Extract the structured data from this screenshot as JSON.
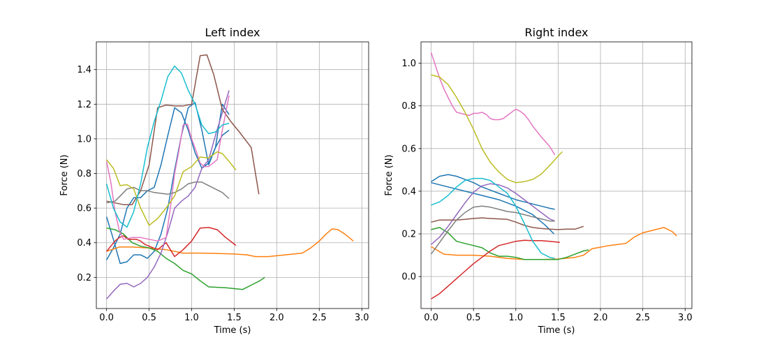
{
  "chart_data": [
    {
      "type": "line",
      "title": "Left index",
      "xlabel": "Time (s)",
      "ylabel": "Force (N)",
      "xlim": [
        -0.12,
        3.08
      ],
      "ylim": [
        0.02,
        1.56
      ],
      "xticks": [
        0.0,
        0.5,
        1.0,
        1.5,
        2.0,
        2.5,
        3.0
      ],
      "xtick_labels": [
        "0.0",
        "0.5",
        "1.0",
        "1.5",
        "2.0",
        "2.5",
        "3.0"
      ],
      "yticks": [
        0.2,
        0.4,
        0.6,
        0.8,
        1.0,
        1.2,
        1.4
      ],
      "ytick_labels": [
        "0.2",
        "0.4",
        "0.6",
        "0.8",
        "1.0",
        "1.2",
        "1.4"
      ],
      "grid": true,
      "series": [
        {
          "color": "#1f77b4",
          "x": [
            0.0,
            0.08,
            0.16,
            0.24,
            0.32,
            0.4,
            0.48,
            0.56,
            0.64,
            0.72,
            0.8,
            0.88,
            0.96,
            1.04,
            1.12,
            1.2,
            1.28,
            1.36,
            1.44
          ],
          "y": [
            0.55,
            0.42,
            0.28,
            0.29,
            0.33,
            0.33,
            0.31,
            0.35,
            0.45,
            0.6,
            0.82,
            1.02,
            1.18,
            1.21,
            1.05,
            0.85,
            0.95,
            1.2,
            1.14
          ]
        },
        {
          "color": "#1f77b4",
          "x": [
            0.0,
            0.08,
            0.16,
            0.24,
            0.32,
            0.4,
            0.48,
            0.56,
            0.64,
            0.72,
            0.8,
            0.88,
            0.96,
            1.04,
            1.12,
            1.2,
            1.28,
            1.36,
            1.44
          ],
          "y": [
            0.3,
            0.37,
            0.45,
            0.6,
            0.66,
            0.66,
            0.7,
            0.72,
            0.85,
            1.02,
            1.18,
            1.15,
            1.05,
            0.92,
            0.83,
            0.86,
            0.95,
            1.02,
            1.05
          ]
        },
        {
          "color": "#ff7f0e",
          "x": [
            0.0,
            0.15,
            0.3,
            0.5,
            0.7,
            0.9,
            1.1,
            1.3,
            1.5,
            1.65,
            1.75,
            1.9,
            2.1,
            2.3,
            2.4,
            2.5,
            2.58,
            2.65,
            2.72,
            2.8,
            2.9
          ],
          "y": [
            0.35,
            0.375,
            0.375,
            0.37,
            0.36,
            0.34,
            0.34,
            0.338,
            0.335,
            0.33,
            0.32,
            0.32,
            0.33,
            0.34,
            0.37,
            0.41,
            0.45,
            0.48,
            0.475,
            0.45,
            0.41
          ]
        },
        {
          "color": "#2ca02c",
          "x": [
            0.0,
            0.1,
            0.2,
            0.3,
            0.4,
            0.5,
            0.6,
            0.7,
            0.8,
            0.9,
            1.0,
            1.1,
            1.2,
            1.4,
            1.6,
            1.7,
            1.8,
            1.86
          ],
          "y": [
            0.485,
            0.475,
            0.45,
            0.4,
            0.38,
            0.37,
            0.35,
            0.31,
            0.28,
            0.24,
            0.22,
            0.18,
            0.145,
            0.14,
            0.13,
            0.155,
            0.18,
            0.2
          ]
        },
        {
          "color": "#d62728",
          "x": [
            0.0,
            0.05,
            0.1,
            0.15,
            0.2,
            0.25,
            0.3,
            0.35,
            0.4,
            0.45,
            0.5,
            0.6,
            0.7,
            0.8,
            0.9,
            1.0,
            1.1,
            1.2,
            1.3,
            1.4,
            1.52
          ],
          "y": [
            0.35,
            0.38,
            0.41,
            0.43,
            0.44,
            0.42,
            0.42,
            0.42,
            0.41,
            0.39,
            0.38,
            0.36,
            0.4,
            0.32,
            0.36,
            0.41,
            0.485,
            0.488,
            0.475,
            0.43,
            0.385
          ]
        },
        {
          "color": "#9467bd",
          "x": [
            0.0,
            0.08,
            0.16,
            0.24,
            0.32,
            0.4,
            0.48,
            0.56,
            0.64,
            0.72,
            0.8,
            0.88,
            0.96,
            1.04,
            1.12,
            1.2,
            1.28,
            1.36,
            1.44
          ],
          "y": [
            0.075,
            0.12,
            0.16,
            0.165,
            0.145,
            0.165,
            0.2,
            0.26,
            0.34,
            0.46,
            0.6,
            0.64,
            0.67,
            0.72,
            0.83,
            0.88,
            1.02,
            1.15,
            1.28
          ]
        },
        {
          "color": "#8c564b",
          "x": [
            0.0,
            0.1,
            0.2,
            0.3,
            0.4,
            0.5,
            0.6,
            0.7,
            0.8,
            0.9,
            1.0,
            1.1,
            1.18,
            1.26,
            1.36,
            1.46,
            1.56,
            1.7,
            1.79
          ],
          "y": [
            0.64,
            0.63,
            0.62,
            0.62,
            0.7,
            0.85,
            1.18,
            1.195,
            1.19,
            1.19,
            1.2,
            1.48,
            1.485,
            1.37,
            1.17,
            1.1,
            1.04,
            0.95,
            0.68
          ]
        },
        {
          "color": "#e377c2",
          "x": [
            0.0,
            0.05,
            0.1,
            0.15,
            0.2,
            0.3,
            0.4,
            0.5,
            0.6,
            0.7,
            0.75,
            0.8,
            0.85,
            0.9,
            0.95,
            1.0,
            1.06,
            1.1,
            1.15,
            1.2,
            1.3,
            1.36,
            1.44
          ],
          "y": [
            0.87,
            0.75,
            0.58,
            0.47,
            0.42,
            0.43,
            0.43,
            0.42,
            0.41,
            0.43,
            0.6,
            0.8,
            0.93,
            1.08,
            1.085,
            1.0,
            0.92,
            0.86,
            0.84,
            0.84,
            0.88,
            1.05,
            1.25
          ]
        },
        {
          "color": "#7f7f7f",
          "x": [
            0.0,
            0.1,
            0.16,
            0.24,
            0.32,
            0.4,
            0.48,
            0.56,
            0.64,
            0.72,
            0.8,
            0.88,
            0.96,
            1.04,
            1.12,
            1.2,
            1.28,
            1.36,
            1.44
          ],
          "y": [
            0.63,
            0.64,
            0.67,
            0.71,
            0.72,
            0.7,
            0.7,
            0.69,
            0.685,
            0.68,
            0.69,
            0.71,
            0.74,
            0.75,
            0.75,
            0.73,
            0.71,
            0.69,
            0.655
          ]
        },
        {
          "color": "#bcbd22",
          "x": [
            0.0,
            0.08,
            0.16,
            0.24,
            0.32,
            0.4,
            0.5,
            0.6,
            0.7,
            0.8,
            0.9,
            1.0,
            1.1,
            1.2,
            1.3,
            1.36,
            1.44,
            1.52
          ],
          "y": [
            0.88,
            0.83,
            0.73,
            0.735,
            0.71,
            0.6,
            0.5,
            0.54,
            0.6,
            0.67,
            0.81,
            0.84,
            0.895,
            0.89,
            0.925,
            0.915,
            0.87,
            0.82
          ]
        },
        {
          "color": "#17becf",
          "x": [
            0.0,
            0.08,
            0.16,
            0.24,
            0.32,
            0.4,
            0.48,
            0.56,
            0.64,
            0.72,
            0.8,
            0.88,
            0.96,
            1.04,
            1.12,
            1.2,
            1.28,
            1.36,
            1.44
          ],
          "y": [
            0.74,
            0.6,
            0.52,
            0.49,
            0.58,
            0.74,
            0.95,
            1.1,
            1.22,
            1.36,
            1.42,
            1.38,
            1.28,
            1.2,
            1.08,
            1.03,
            1.04,
            1.08,
            1.09
          ]
        }
      ]
    },
    {
      "type": "line",
      "title": "Right index",
      "xlabel": "Time (s)",
      "ylabel": "Force (N)",
      "xlim": [
        -0.12,
        3.08
      ],
      "ylim": [
        -0.15,
        1.1
      ],
      "xticks": [
        0.0,
        0.5,
        1.0,
        1.5,
        2.0,
        2.5,
        3.0
      ],
      "xtick_labels": [
        "0.0",
        "0.5",
        "1.0",
        "1.5",
        "2.0",
        "2.5",
        "3.0"
      ],
      "yticks": [
        0.0,
        0.2,
        0.4,
        0.6,
        0.8,
        1.0
      ],
      "ytick_labels": [
        "0.0",
        "0.2",
        "0.4",
        "0.6",
        "0.8",
        "1.0"
      ],
      "grid": true,
      "series": [
        {
          "color": "#1f77b4",
          "x": [
            0.0,
            0.2,
            0.4,
            0.6,
            0.8,
            1.0,
            1.2,
            1.35,
            1.45
          ],
          "y": [
            0.44,
            0.42,
            0.4,
            0.38,
            0.36,
            0.33,
            0.29,
            0.24,
            0.2
          ]
        },
        {
          "color": "#1f77b4",
          "x": [
            0.0,
            0.1,
            0.2,
            0.3,
            0.4,
            0.5,
            0.6,
            0.7,
            0.8,
            0.9,
            1.0,
            1.1,
            1.2,
            1.3,
            1.4,
            1.46
          ],
          "y": [
            0.445,
            0.47,
            0.478,
            0.47,
            0.455,
            0.44,
            0.42,
            0.405,
            0.39,
            0.375,
            0.36,
            0.35,
            0.34,
            0.33,
            0.32,
            0.315
          ]
        },
        {
          "color": "#ff7f0e",
          "x": [
            0.0,
            0.15,
            0.3,
            0.5,
            0.7,
            0.9,
            1.1,
            1.3,
            1.5,
            1.7,
            1.8,
            1.9,
            2.1,
            2.3,
            2.4,
            2.5,
            2.6,
            2.75,
            2.85,
            2.9
          ],
          "y": [
            0.14,
            0.105,
            0.1,
            0.1,
            0.095,
            0.085,
            0.08,
            0.08,
            0.082,
            0.09,
            0.1,
            0.13,
            0.145,
            0.155,
            0.185,
            0.205,
            0.215,
            0.23,
            0.21,
            0.19
          ]
        },
        {
          "color": "#2ca02c",
          "x": [
            0.0,
            0.1,
            0.2,
            0.3,
            0.4,
            0.5,
            0.6,
            0.7,
            0.8,
            0.9,
            1.0,
            1.1,
            1.2,
            1.3,
            1.4,
            1.5,
            1.6,
            1.7,
            1.8,
            1.86
          ],
          "y": [
            0.22,
            0.23,
            0.205,
            0.165,
            0.155,
            0.145,
            0.135,
            0.11,
            0.095,
            0.095,
            0.09,
            0.08,
            0.08,
            0.08,
            0.08,
            0.08,
            0.09,
            0.105,
            0.12,
            0.125
          ]
        },
        {
          "color": "#d62728",
          "x": [
            0.0,
            0.1,
            0.2,
            0.3,
            0.4,
            0.5,
            0.6,
            0.7,
            0.8,
            0.9,
            1.0,
            1.1,
            1.2,
            1.3,
            1.4,
            1.52
          ],
          "y": [
            -0.105,
            -0.08,
            -0.045,
            -0.01,
            0.025,
            0.06,
            0.09,
            0.12,
            0.145,
            0.155,
            0.165,
            0.17,
            0.168,
            0.168,
            0.165,
            0.16
          ]
        },
        {
          "color": "#9467bd",
          "x": [
            0.0,
            0.1,
            0.2,
            0.3,
            0.4,
            0.5,
            0.6,
            0.7,
            0.8,
            0.9,
            1.0,
            1.1,
            1.2,
            1.3,
            1.4,
            1.46
          ],
          "y": [
            0.15,
            0.185,
            0.235,
            0.29,
            0.345,
            0.395,
            0.425,
            0.435,
            0.43,
            0.415,
            0.39,
            0.36,
            0.33,
            0.3,
            0.27,
            0.26
          ]
        },
        {
          "color": "#8c564b",
          "x": [
            0.0,
            0.1,
            0.2,
            0.3,
            0.4,
            0.5,
            0.6,
            0.7,
            0.8,
            0.9,
            1.0,
            1.1,
            1.2,
            1.3,
            1.4,
            1.5,
            1.6,
            1.7,
            1.8
          ],
          "y": [
            0.255,
            0.265,
            0.265,
            0.265,
            0.268,
            0.272,
            0.275,
            0.272,
            0.27,
            0.268,
            0.255,
            0.24,
            0.23,
            0.225,
            0.222,
            0.22,
            0.222,
            0.222,
            0.235
          ]
        },
        {
          "color": "#e377c2",
          "x": [
            0.0,
            0.05,
            0.1,
            0.15,
            0.2,
            0.25,
            0.3,
            0.35,
            0.4,
            0.45,
            0.5,
            0.55,
            0.6,
            0.65,
            0.7,
            0.75,
            0.8,
            0.85,
            0.9,
            0.95,
            1.0,
            1.05,
            1.1,
            1.15,
            1.2,
            1.3,
            1.4,
            1.46
          ],
          "y": [
            1.05,
            0.99,
            0.93,
            0.88,
            0.84,
            0.8,
            0.77,
            0.765,
            0.76,
            0.755,
            0.765,
            0.765,
            0.77,
            0.76,
            0.74,
            0.735,
            0.735,
            0.74,
            0.755,
            0.77,
            0.785,
            0.775,
            0.76,
            0.735,
            0.705,
            0.655,
            0.61,
            0.57
          ]
        },
        {
          "color": "#7f7f7f",
          "x": [
            0.0,
            0.1,
            0.2,
            0.3,
            0.4,
            0.5,
            0.6,
            0.7,
            0.8,
            0.9,
            1.0,
            1.1,
            1.2,
            1.3,
            1.4,
            1.46
          ],
          "y": [
            0.105,
            0.16,
            0.215,
            0.265,
            0.3,
            0.325,
            0.33,
            0.325,
            0.315,
            0.305,
            0.3,
            0.29,
            0.28,
            0.27,
            0.26,
            0.26
          ]
        },
        {
          "color": "#bcbd22",
          "x": [
            0.0,
            0.1,
            0.2,
            0.3,
            0.4,
            0.5,
            0.6,
            0.7,
            0.8,
            0.9,
            1.0,
            1.1,
            1.2,
            1.3,
            1.4,
            1.5,
            1.55
          ],
          "y": [
            0.945,
            0.935,
            0.9,
            0.84,
            0.77,
            0.69,
            0.6,
            0.535,
            0.49,
            0.455,
            0.44,
            0.445,
            0.455,
            0.48,
            0.52,
            0.565,
            0.585
          ]
        },
        {
          "color": "#17becf",
          "x": [
            0.0,
            0.1,
            0.2,
            0.3,
            0.4,
            0.5,
            0.6,
            0.7,
            0.8,
            0.9,
            1.0,
            1.1,
            1.2,
            1.3,
            1.4,
            1.46
          ],
          "y": [
            0.335,
            0.35,
            0.38,
            0.42,
            0.45,
            0.46,
            0.46,
            0.45,
            0.42,
            0.39,
            0.33,
            0.25,
            0.165,
            0.11,
            0.09,
            0.085
          ]
        }
      ]
    }
  ]
}
